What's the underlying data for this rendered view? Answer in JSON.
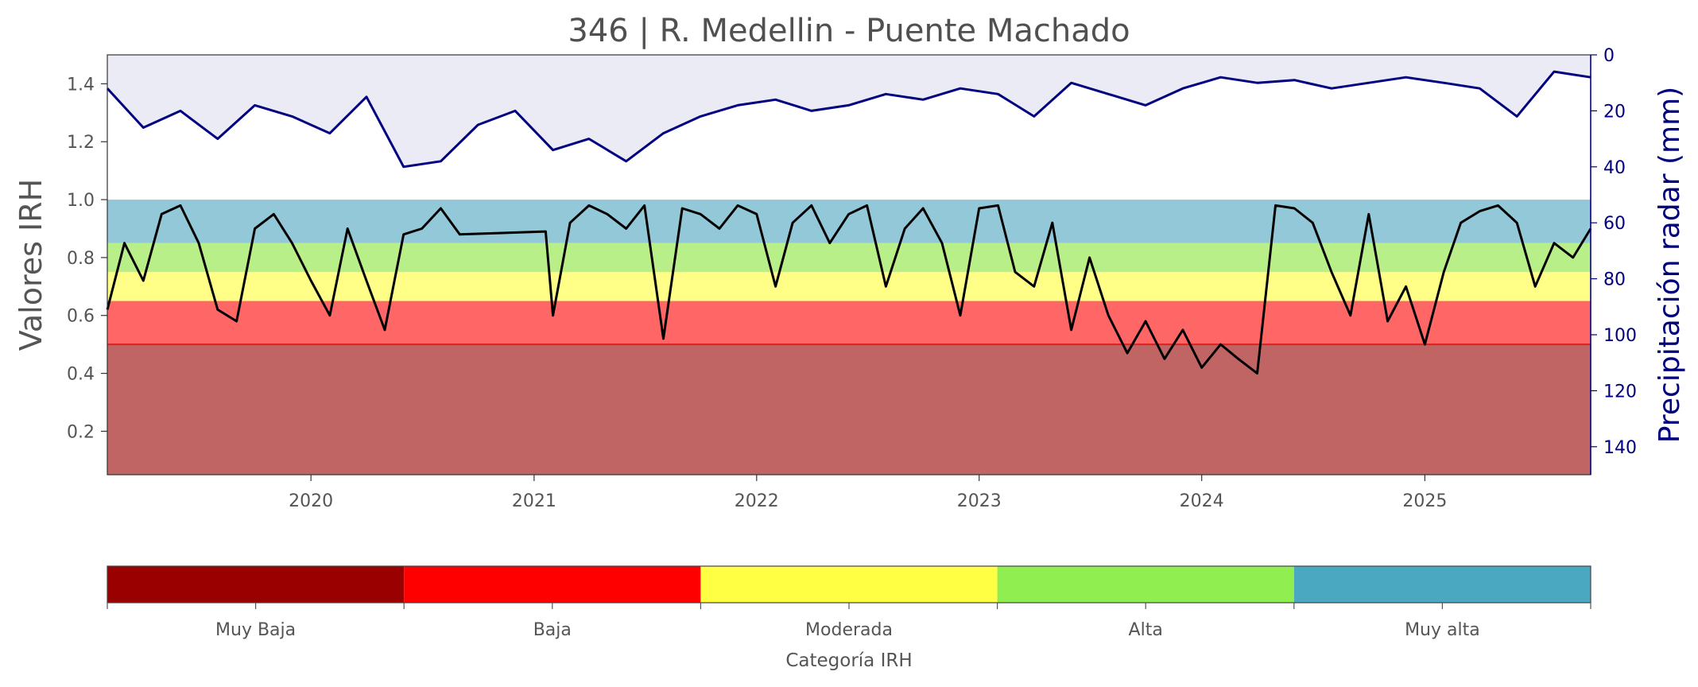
{
  "chart_data": {
    "type": "line",
    "title": "346 | R. Medellin - Puente Machado",
    "ylabel": "Valores IRH",
    "y2label": "Precipitación radar (mm)",
    "xlim": [
      "2019-02-01",
      "2025-09-30"
    ],
    "ylim": [
      0.05,
      1.5
    ],
    "y2lim": [
      150,
      0
    ],
    "y2_inverted": true,
    "x_ticks": [
      "2020",
      "2021",
      "2022",
      "2023",
      "2024",
      "2025"
    ],
    "y_ticks": [
      "0.2",
      "0.4",
      "0.6",
      "0.8",
      "1.0",
      "1.2",
      "1.4"
    ],
    "y2_ticks": [
      "0",
      "20",
      "40",
      "60",
      "80",
      "100",
      "120",
      "140"
    ],
    "bands": [
      {
        "from": 0.05,
        "to": 0.5,
        "color": "#c06464"
      },
      {
        "from": 0.5,
        "to": 0.65,
        "color": "#ff6666"
      },
      {
        "from": 0.65,
        "to": 0.75,
        "color": "#ffff88"
      },
      {
        "from": 0.75,
        "to": 0.85,
        "color": "#b8ef88"
      },
      {
        "from": 0.85,
        "to": 1.0,
        "color": "#92c8d8"
      }
    ],
    "threshold_line": {
      "value": 0.5,
      "color": "#e02020"
    },
    "series": [
      {
        "color": "#000000",
        "axis": "left",
        "x": [
          "2019-02-01",
          "2019-03-01",
          "2019-04-01",
          "2019-05-01",
          "2019-06-01",
          "2019-07-01",
          "2019-08-01",
          "2019-09-01",
          "2019-10-01",
          "2019-11-01",
          "2019-12-01",
          "2020-01-01",
          "2020-02-01",
          "2020-03-01",
          "2020-04-01",
          "2020-05-01",
          "2020-06-01",
          "2020-07-01",
          "2020-08-01",
          "2020-09-01",
          "2021-01-20",
          "2021-02-01",
          "2021-03-01",
          "2021-04-01",
          "2021-05-01",
          "2021-06-01",
          "2021-07-01",
          "2021-08-01",
          "2021-09-01",
          "2021-10-01",
          "2021-11-01",
          "2021-12-01",
          "2022-01-01",
          "2022-02-01",
          "2022-03-01",
          "2022-04-01",
          "2022-05-01",
          "2022-06-01",
          "2022-07-01",
          "2022-08-01",
          "2022-09-01",
          "2022-10-01",
          "2022-11-01",
          "2022-12-01",
          "2023-01-01",
          "2023-02-01",
          "2023-03-01",
          "2023-04-01",
          "2023-05-01",
          "2023-06-01",
          "2023-07-01",
          "2023-08-01",
          "2023-09-01",
          "2023-10-01",
          "2023-11-01",
          "2023-12-01",
          "2024-01-01",
          "2024-02-01",
          "2024-03-01",
          "2024-04-01",
          "2024-05-01",
          "2024-06-01",
          "2024-07-01",
          "2024-08-01",
          "2024-09-01",
          "2024-10-01",
          "2024-11-01",
          "2024-12-01",
          "2025-01-01",
          "2025-02-01",
          "2025-03-01",
          "2025-04-01",
          "2025-05-01",
          "2025-06-01",
          "2025-07-01",
          "2025-08-01",
          "2025-09-01",
          "2025-09-30"
        ],
        "y": [
          0.62,
          0.85,
          0.72,
          0.95,
          0.98,
          0.85,
          0.62,
          0.58,
          0.9,
          0.95,
          0.85,
          0.72,
          0.6,
          0.9,
          0.72,
          0.55,
          0.88,
          0.9,
          0.97,
          0.88,
          0.89,
          0.6,
          0.92,
          0.98,
          0.95,
          0.9,
          0.98,
          0.52,
          0.97,
          0.95,
          0.9,
          0.98,
          0.95,
          0.7,
          0.92,
          0.98,
          0.85,
          0.95,
          0.98,
          0.7,
          0.9,
          0.97,
          0.85,
          0.6,
          0.97,
          0.98,
          0.75,
          0.7,
          0.92,
          0.55,
          0.8,
          0.6,
          0.47,
          0.58,
          0.45,
          0.55,
          0.42,
          0.5,
          0.45,
          0.4,
          0.98,
          0.97,
          0.92,
          0.75,
          0.6,
          0.95,
          0.58,
          0.7,
          0.5,
          0.75,
          0.92,
          0.96,
          0.98,
          0.92,
          0.7,
          0.85,
          0.8,
          0.9
        ]
      },
      {
        "color": "#000080",
        "axis": "right",
        "x": [
          "2019-02-01",
          "2019-04-01",
          "2019-06-01",
          "2019-08-01",
          "2019-10-01",
          "2019-12-01",
          "2020-02-01",
          "2020-04-01",
          "2020-06-01",
          "2020-08-01",
          "2020-10-01",
          "2020-12-01",
          "2021-02-01",
          "2021-04-01",
          "2021-06-01",
          "2021-08-01",
          "2021-10-01",
          "2021-12-01",
          "2022-02-01",
          "2022-04-01",
          "2022-06-01",
          "2022-08-01",
          "2022-10-01",
          "2022-12-01",
          "2023-02-01",
          "2023-04-01",
          "2023-06-01",
          "2023-08-01",
          "2023-10-01",
          "2023-12-01",
          "2024-02-01",
          "2024-04-01",
          "2024-06-01",
          "2024-08-01",
          "2024-10-01",
          "2024-12-01",
          "2025-02-01",
          "2025-04-01",
          "2025-06-01",
          "2025-08-01",
          "2025-09-30"
        ],
        "y": [
          12,
          26,
          20,
          30,
          18,
          22,
          28,
          15,
          40,
          38,
          25,
          20,
          34,
          30,
          38,
          28,
          22,
          18,
          16,
          20,
          18,
          14,
          16,
          12,
          14,
          22,
          10,
          14,
          18,
          12,
          8,
          10,
          9,
          12,
          10,
          8,
          10,
          12,
          22,
          6,
          8
        ]
      }
    ],
    "colorbar": {
      "title": "Categoría IRH",
      "categories": [
        "Muy Baja",
        "Baja",
        "Moderada",
        "Alta",
        "Muy alta"
      ],
      "colors": [
        "#990000",
        "#ff0000",
        "#ffff44",
        "#90ee50",
        "#4aa8c0"
      ]
    }
  }
}
